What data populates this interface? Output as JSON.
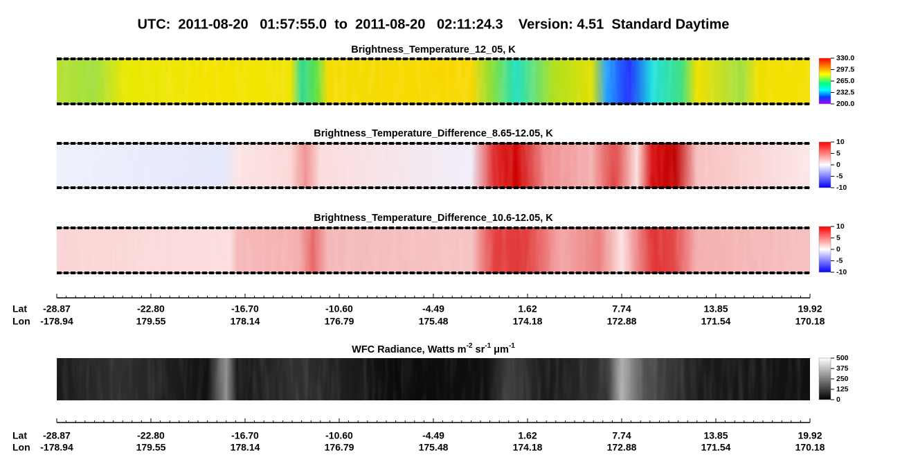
{
  "title": "UTC:  2011-08-20   01:57:55.0  to  2011-08-20   02:11:24.3    Version: 4.51  Standard Daytime",
  "panels": [
    {
      "title": "Brightness_Temperature_12_05, K",
      "colorbar_ticks": [
        "330.0",
        "297.5",
        "265.0",
        "232.5",
        "200.0"
      ]
    },
    {
      "title": "Brightness_Temperature_Difference_8.65-12.05, K",
      "colorbar_ticks": [
        "10",
        "5",
        "0",
        "-5",
        "-10"
      ]
    },
    {
      "title": "Brightness_Temperature_Difference_10.6-12.05, K",
      "colorbar_ticks": [
        "10",
        "5",
        "0",
        "-5",
        "-10"
      ]
    },
    {
      "title_parts": [
        "WFC Radiance, Watts m",
        "-2",
        " sr",
        "-1",
        " μm",
        "-1"
      ],
      "colorbar_ticks": [
        "500",
        "375",
        "250",
        "125",
        "0"
      ]
    }
  ],
  "axes": [
    {
      "row_labels": [
        "Lat",
        "Lon"
      ],
      "lat": [
        "-28.87",
        "-22.80",
        "-16.70",
        "-10.60",
        "-4.49",
        "1.62",
        "7.74",
        "13.85",
        "19.92"
      ],
      "lon": [
        "-178.94",
        "179.55",
        "178.14",
        "176.79",
        "175.48",
        "174.18",
        "172.88",
        "171.54",
        "170.18"
      ]
    },
    {
      "row_labels": [
        "Lat",
        "Lon"
      ],
      "lat": [
        "-28.87",
        "-22.80",
        "-16.70",
        "-10.60",
        "-4.49",
        "1.62",
        "7.74",
        "13.85",
        "19.92"
      ],
      "lon": [
        "-178.94",
        "179.55",
        "178.14",
        "176.79",
        "175.48",
        "174.18",
        "172.88",
        "171.54",
        "170.18"
      ]
    }
  ]
}
